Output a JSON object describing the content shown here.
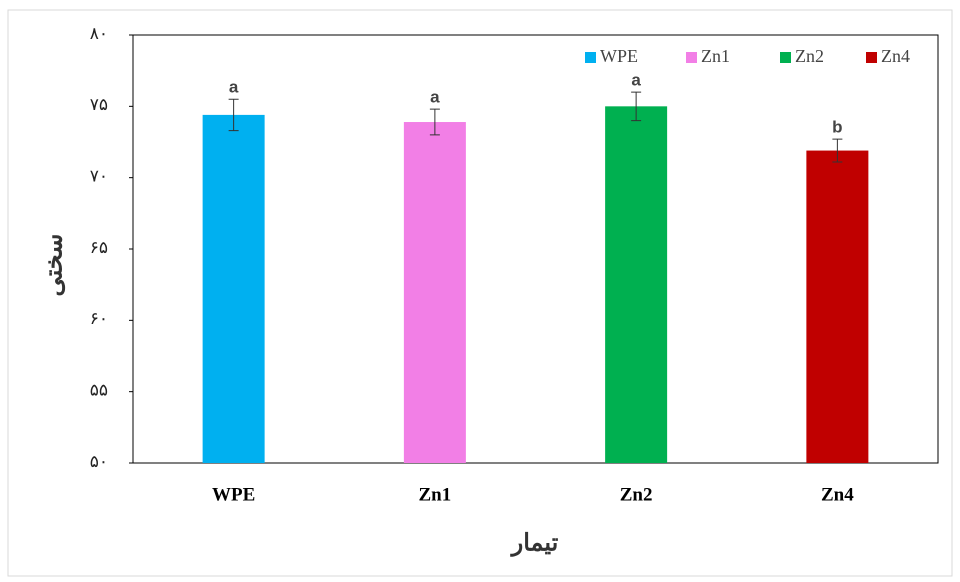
{
  "chart_data": {
    "type": "bar",
    "categories": [
      "WPE",
      "Zn1",
      "Zn2",
      "Zn4"
    ],
    "values": [
      74.4,
      73.9,
      75.0,
      71.9
    ],
    "errors": [
      1.1,
      0.9,
      1.0,
      0.8
    ],
    "letters": [
      "a",
      "a",
      "a",
      "b"
    ],
    "colors": [
      "#00b0f0",
      "#f27fe6",
      "#00b050",
      "#c00000"
    ],
    "ylabel": "سختی",
    "xlabel": "تیمار",
    "ylim": [
      50,
      80
    ],
    "yticks": [
      {
        "value": 50,
        "label": "۵۰"
      },
      {
        "value": 55,
        "label": "۵۵"
      },
      {
        "value": 60,
        "label": "۶۰"
      },
      {
        "value": 65,
        "label": "۶۵"
      },
      {
        "value": 70,
        "label": "۷۰"
      },
      {
        "value": 75,
        "label": "۷۵"
      },
      {
        "value": 80,
        "label": "۸۰"
      }
    ],
    "legend": "top-right"
  }
}
